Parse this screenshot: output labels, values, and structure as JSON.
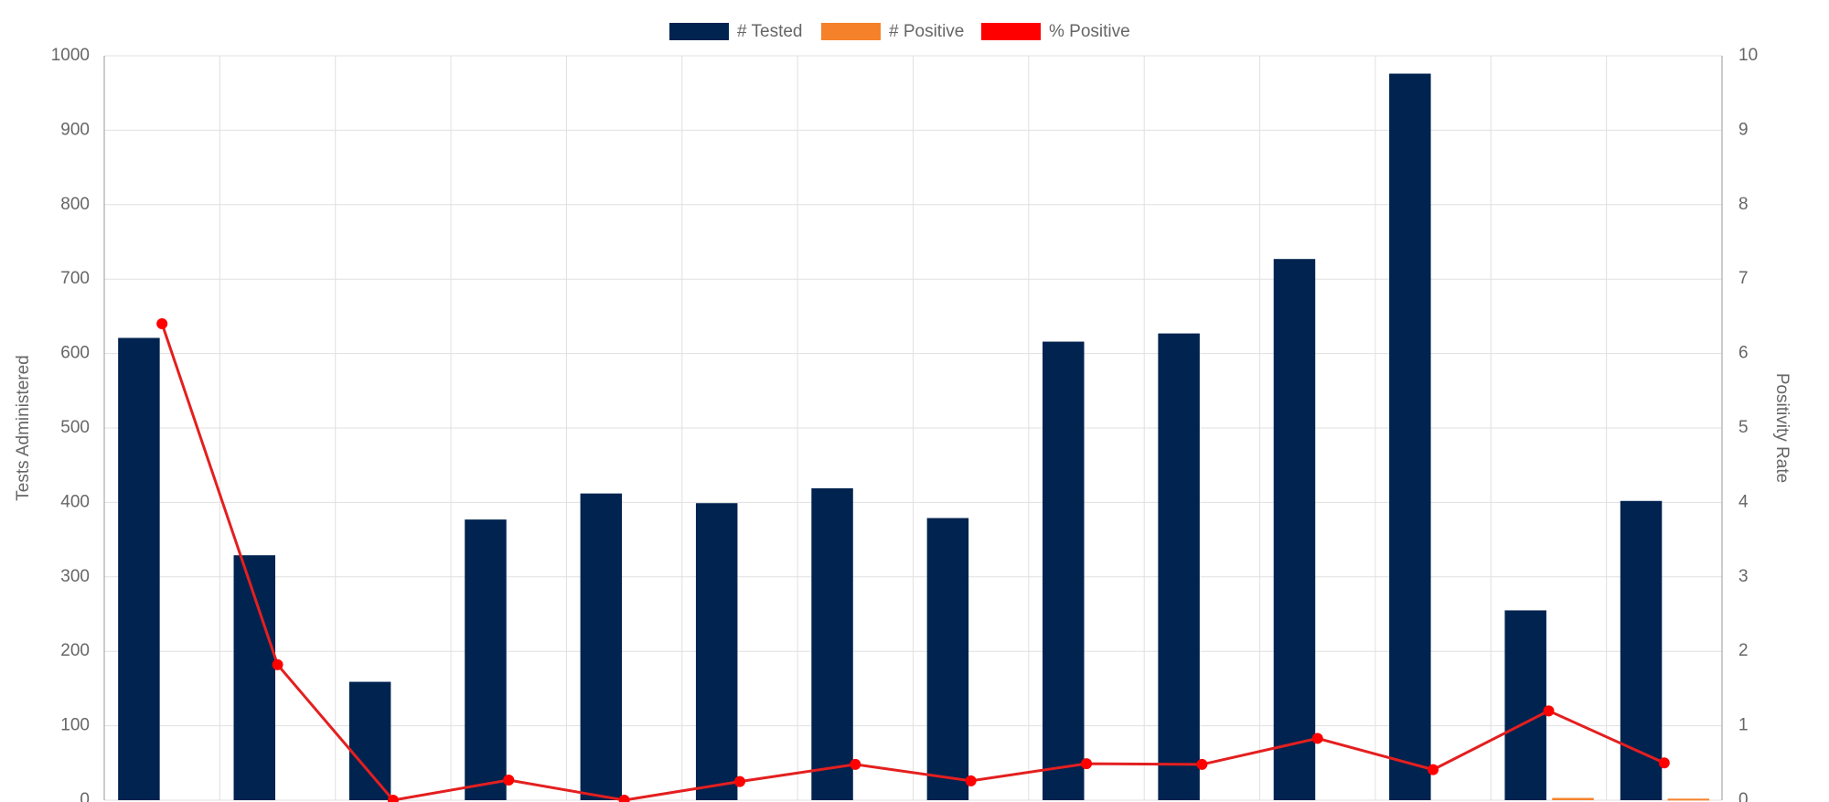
{
  "chart_data": {
    "type": "bar",
    "y_label": "Tests Administered",
    "y2_label": "Positivity Rate",
    "categories": [
      null,
      null,
      null,
      null,
      null,
      null,
      null,
      null,
      null,
      null,
      null,
      null,
      null,
      null
    ],
    "series": [
      {
        "name": "# Tested",
        "type": "bar",
        "color": "#012350",
        "values": [
          621,
          329,
          159,
          377,
          412,
          399,
          419,
          379,
          616,
          627,
          727,
          976,
          255,
          402
        ]
      },
      {
        "name": "# Positive",
        "type": "bar",
        "color": "#f5822a",
        "values": [
          0,
          0,
          0,
          0,
          0,
          0,
          0,
          0,
          0,
          0,
          0,
          0,
          3,
          2
        ]
      },
      {
        "name": "% Positive",
        "type": "line",
        "axis": "y2",
        "color": "#ff0000",
        "values": [
          6.4,
          1.82,
          0,
          0.27,
          0,
          0.25,
          0.48,
          0.26,
          0.49,
          0.48,
          0.83,
          0.41,
          1.2,
          0.5
        ]
      }
    ],
    "ylim": [
      0,
      1000
    ],
    "yticks": [
      0,
      100,
      200,
      300,
      400,
      500,
      600,
      700,
      800,
      900,
      1000
    ],
    "y2lim": [
      0,
      10
    ],
    "y2ticks": [
      0,
      1,
      2,
      3,
      4,
      5,
      6,
      7,
      8,
      9,
      10
    ],
    "grid": true,
    "legend": "top"
  }
}
